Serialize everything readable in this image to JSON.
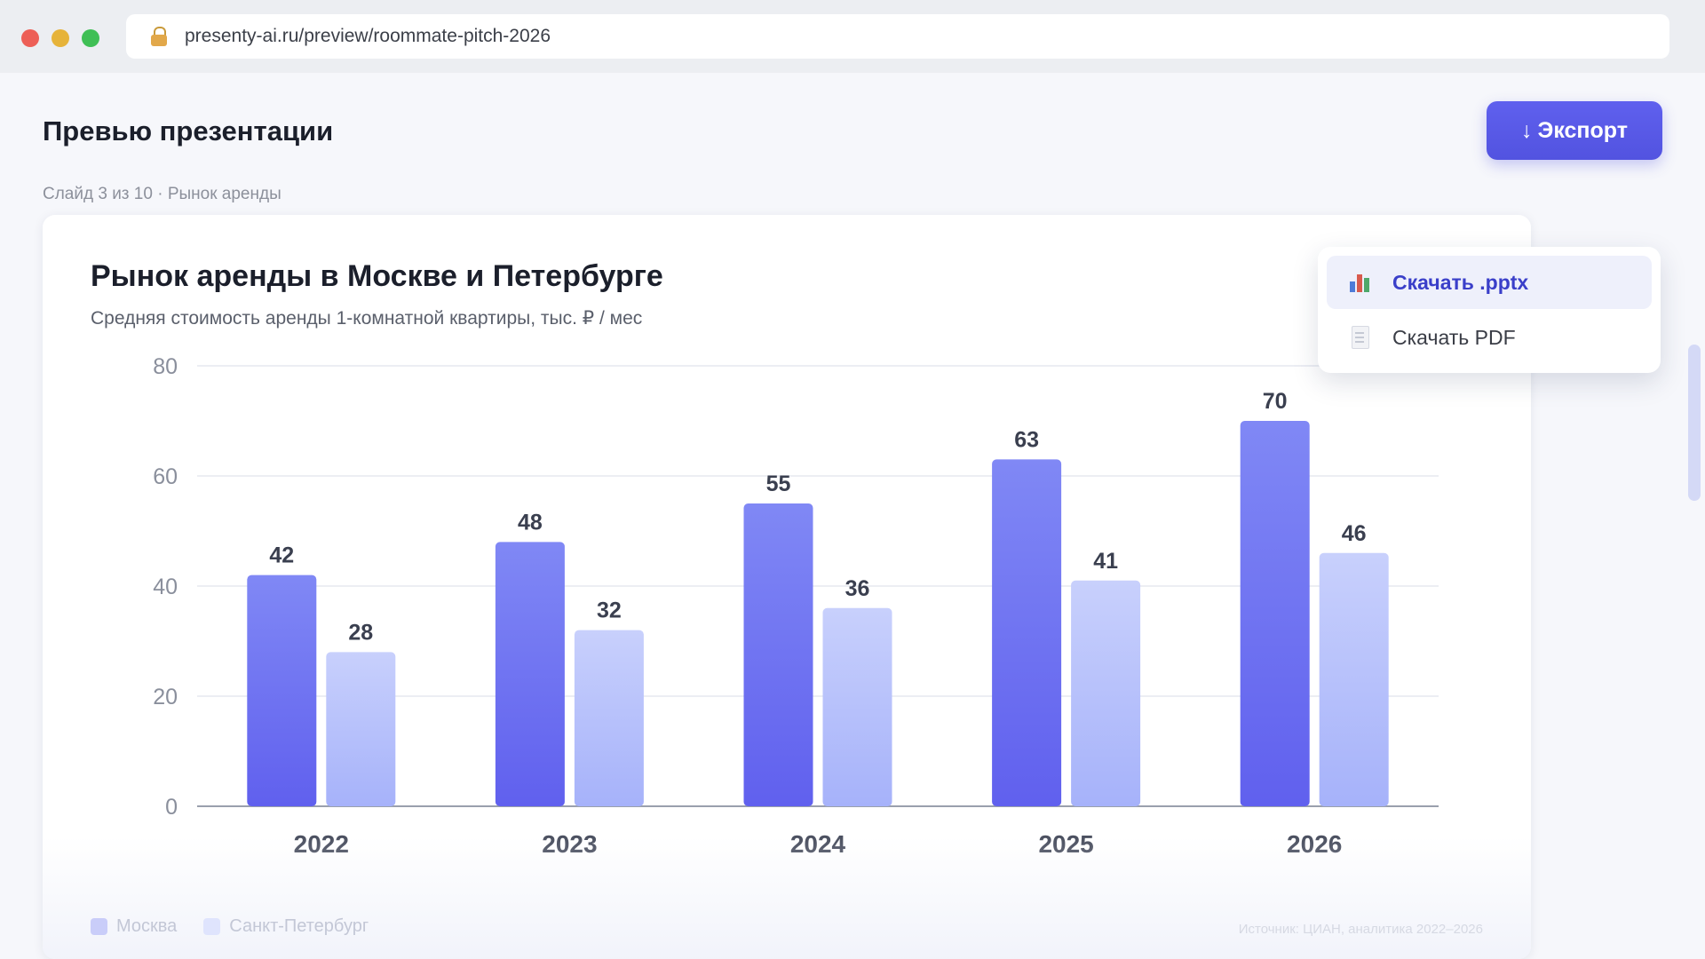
{
  "browser": {
    "url": "presenty-ai.ru/preview/roommate-pitch-2026"
  },
  "page": {
    "title": "Превью презентации",
    "slide_info": "Слайд 3 из 10 · Рынок аренды",
    "export_button": "Экспорт",
    "export_arrow": "↓"
  },
  "dropdown": {
    "items": [
      {
        "label": "Скачать .pptx",
        "icon": "chart-file-icon"
      },
      {
        "label": "Скачать PDF",
        "icon": "document-icon"
      }
    ]
  },
  "slide": {
    "legend": [
      "Москва",
      "Санкт-Петербург"
    ],
    "source": "Источник: ЦИАН, аналитика 2022–2026"
  },
  "chart_data": {
    "type": "bar",
    "title": "Рынок аренды в Москве и Петербурге",
    "subtitle": "Средняя стоимость аренды 1-комнатной квартиры, тыс. ₽ / мес",
    "categories": [
      "2022",
      "2023",
      "2024",
      "2025",
      "2026"
    ],
    "series": [
      {
        "name": "Москва",
        "values": [
          42,
          48,
          55,
          63,
          70
        ],
        "color": "#6366f1"
      },
      {
        "name": "Санкт-Петербург",
        "values": [
          28,
          32,
          36,
          41,
          46
        ],
        "color": "#a5b4fc"
      }
    ],
    "ylim": [
      0,
      80
    ],
    "yticks": [
      0,
      20,
      40,
      60,
      80
    ],
    "grid": true,
    "legend_position": "bottom-left"
  }
}
